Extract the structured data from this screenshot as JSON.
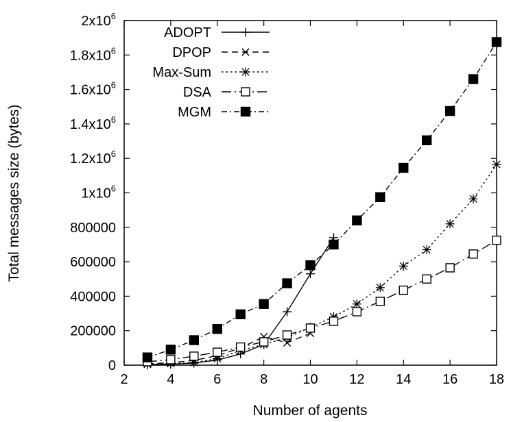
{
  "chart_data": {
    "type": "line",
    "xlabel": "Number of agents",
    "ylabel": "Total messages size (bytes)",
    "xlim": [
      2,
      18
    ],
    "ylim": [
      0,
      2000000
    ],
    "xticks": [
      "2",
      "4",
      "6",
      "8",
      "10",
      "12",
      "14",
      "16",
      "18"
    ],
    "yticks": [
      {
        "label": "0"
      },
      {
        "label": "200000"
      },
      {
        "label": "400000"
      },
      {
        "label": "600000"
      },
      {
        "label": "800000"
      },
      {
        "label": "1x10",
        "exp": "6"
      },
      {
        "label": "1.2x10",
        "exp": "6"
      },
      {
        "label": "1.4x10",
        "exp": "6"
      },
      {
        "label": "1.6x10",
        "exp": "6"
      },
      {
        "label": "1.8x10",
        "exp": "6"
      },
      {
        "label": "2x10",
        "exp": "6"
      }
    ],
    "legend_position": "top-left",
    "series": [
      {
        "name": "ADOPT",
        "marker": "plus",
        "dash": "solid",
        "x": [
          3,
          4,
          5,
          6,
          7,
          8,
          9,
          10,
          11
        ],
        "y": [
          3000,
          5000,
          12000,
          30000,
          65000,
          120000,
          310000,
          530000,
          740000
        ]
      },
      {
        "name": "DPOP",
        "marker": "cross",
        "dash": "dashed",
        "x": [
          3,
          4,
          5,
          6,
          7,
          8,
          9,
          10
        ],
        "y": [
          8000,
          14000,
          28000,
          55000,
          100000,
          165000,
          130000,
          185000
        ]
      },
      {
        "name": "Max-Sum",
        "marker": "star",
        "dash": "dotted",
        "x": [
          3,
          4,
          5,
          6,
          7,
          8,
          9,
          10,
          11,
          12,
          13,
          14,
          15,
          16,
          17,
          18
        ],
        "y": [
          5000,
          9000,
          15000,
          38000,
          85000,
          120000,
          160000,
          220000,
          280000,
          355000,
          450000,
          575000,
          670000,
          820000,
          965000,
          1165000
        ]
      },
      {
        "name": "DSA",
        "marker": "open-square",
        "dash": "dashdot-sparse",
        "x": [
          3,
          4,
          5,
          6,
          7,
          8,
          9,
          10,
          11,
          12,
          13,
          14,
          15,
          16,
          17,
          18
        ],
        "y": [
          20000,
          32000,
          52000,
          75000,
          105000,
          135000,
          175000,
          215000,
          255000,
          310000,
          370000,
          435000,
          500000,
          565000,
          645000,
          725000
        ]
      },
      {
        "name": "MGM",
        "marker": "filled-square",
        "dash": "dashdot",
        "x": [
          3,
          4,
          5,
          6,
          7,
          8,
          9,
          10,
          11,
          12,
          13,
          14,
          15,
          16,
          17,
          18
        ],
        "y": [
          45000,
          90000,
          145000,
          210000,
          295000,
          355000,
          475000,
          580000,
          700000,
          840000,
          975000,
          1145000,
          1305000,
          1475000,
          1660000,
          1875000
        ]
      }
    ]
  }
}
